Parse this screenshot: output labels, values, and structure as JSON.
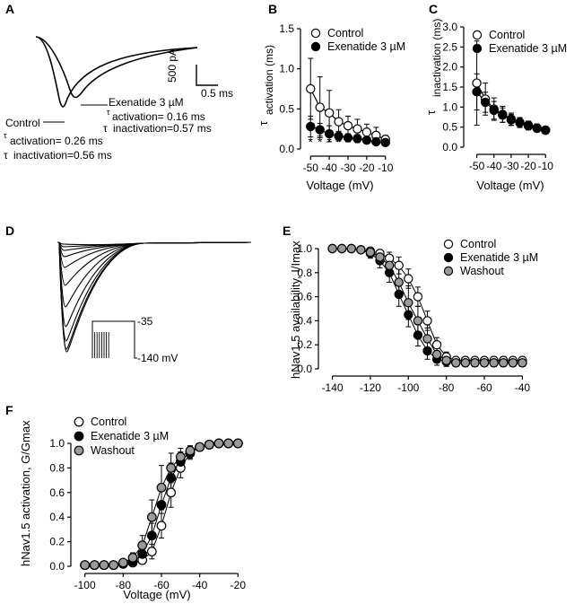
{
  "chart_data": [
    {
      "panel": "A",
      "type": "line",
      "annotations": {
        "exenatide_title": "Exenatide 3 µM",
        "exenatide_tau_act": "activation= 0.16 ms",
        "exenatide_tau_inact": "inactivation=0.57 ms",
        "control_title": "Control",
        "control_tau_act": "activation= 0.26 ms",
        "control_tau_inact": "inactivation=0.56 ms",
        "tau_symbol": "τ",
        "scale_current": "500 pA",
        "scale_time": "0.5 ms"
      }
    },
    {
      "panel": "B",
      "type": "scatter",
      "xlabel": "Voltage (mV)",
      "ylabel": "activation (ms)",
      "ylabel_symbol": "τ",
      "xlim": [
        -53,
        -7
      ],
      "ylim": [
        0,
        1.5
      ],
      "xticks": [
        -50,
        -40,
        -30,
        -20,
        -10
      ],
      "xtick_labels": [
        "-50",
        "-40",
        "-30",
        "-20",
        "-10"
      ],
      "yticks": [
        0,
        0.5,
        1,
        1.5
      ],
      "ytick_labels": [
        "0.0",
        "0.5",
        "1.0",
        "1.5"
      ],
      "legend": [
        "Control",
        "Exenatide 3 µM"
      ],
      "significance_marker": "*",
      "significance_x": [
        -50,
        -45,
        -40,
        -35
      ],
      "series": [
        {
          "name": "Control",
          "marker": "open",
          "x": [
            -50,
            -45,
            -40,
            -35,
            -30,
            -25,
            -20,
            -15,
            -10
          ],
          "y": [
            0.75,
            0.52,
            0.45,
            0.34,
            0.29,
            0.25,
            0.21,
            0.17,
            0.12
          ],
          "err": [
            0.38,
            0.38,
            0.28,
            0.15,
            0.12,
            0.12,
            0.1,
            0.1,
            0.05
          ]
        },
        {
          "name": "Exenatide 3 µM",
          "marker": "filled",
          "x": [
            -50,
            -45,
            -40,
            -35,
            -30,
            -25,
            -20,
            -15,
            -10
          ],
          "y": [
            0.28,
            0.24,
            0.19,
            0.16,
            0.14,
            0.13,
            0.11,
            0.09,
            0.08
          ],
          "err": [
            0.13,
            0.08,
            0.1,
            0.06,
            0.05,
            0.05,
            0.04,
            0.04,
            0.03
          ]
        }
      ]
    },
    {
      "panel": "C",
      "type": "scatter",
      "xlabel": "Voltage (mV)",
      "ylabel": "inactivation (ms)",
      "ylabel_symbol": "τ",
      "xlim": [
        -55,
        -7
      ],
      "ylim": [
        0,
        3.0
      ],
      "xticks": [
        -50,
        -40,
        -30,
        -20,
        -10
      ],
      "xtick_labels": [
        "-50",
        "-40",
        "-30",
        "-20",
        "-10"
      ],
      "yticks": [
        0,
        0.5,
        1,
        1.5,
        2,
        2.5,
        3
      ],
      "ytick_labels": [
        "0.0",
        "0.5",
        "1.0",
        "1.5",
        "2.0",
        "2.5",
        "3.0"
      ],
      "legend": [
        "Control",
        "Exenatide 3 µM"
      ],
      "series": [
        {
          "name": "Control",
          "marker": "open",
          "x": [
            -50,
            -45,
            -40,
            -35,
            -30,
            -25,
            -20,
            -15,
            -10
          ],
          "y": [
            1.6,
            1.2,
            0.95,
            0.82,
            0.7,
            0.62,
            0.55,
            0.48,
            0.43
          ],
          "err": [
            1.05,
            0.4,
            0.28,
            0.2,
            0.15,
            0.12,
            0.1,
            0.1,
            0.08
          ]
        },
        {
          "name": "Exenatide 3 µM",
          "marker": "filled",
          "x": [
            -50,
            -45,
            -40,
            -35,
            -30,
            -25,
            -20,
            -15,
            -10
          ],
          "y": [
            1.38,
            1.12,
            0.92,
            0.8,
            0.68,
            0.61,
            0.53,
            0.47,
            0.42
          ],
          "err": [
            0.45,
            0.25,
            0.22,
            0.18,
            0.14,
            0.12,
            0.1,
            0.08,
            0.08
          ]
        }
      ]
    },
    {
      "panel": "D",
      "type": "line",
      "protocol_labels": [
        "-35",
        "-140 mV"
      ]
    },
    {
      "panel": "E",
      "type": "scatter",
      "ylabel": "hNav1.5 availability, I/Imax",
      "xlim": [
        -145,
        -35
      ],
      "ylim": [
        0,
        1.0
      ],
      "xticks": [
        -140,
        -120,
        -100,
        -80,
        -60,
        -40
      ],
      "xtick_labels": [
        "-140",
        "-120",
        "-100",
        "-80",
        "-60",
        "-40"
      ],
      "yticks": [
        0,
        0.2,
        0.4,
        0.6,
        0.8,
        1.0
      ],
      "ytick_labels": [
        "0.0",
        "0.2",
        "0.4",
        "0.6",
        "0.8",
        "1.0"
      ],
      "legend": [
        "Control",
        "Exenatide 3 µM",
        "Washout"
      ],
      "series": [
        {
          "name": "Control",
          "marker": "open",
          "x": [
            -140,
            -135,
            -130,
            -125,
            -120,
            -115,
            -110,
            -105,
            -100,
            -95,
            -90,
            -85,
            -80,
            -75,
            -70,
            -65,
            -60,
            -55,
            -50,
            -45,
            -40
          ],
          "y": [
            1.0,
            1.0,
            1.0,
            0.99,
            0.98,
            0.96,
            0.92,
            0.86,
            0.75,
            0.6,
            0.4,
            0.2,
            0.1,
            0.07,
            0.07,
            0.07,
            0.07,
            0.07,
            0.07,
            0.07,
            0.07
          ],
          "err": [
            0,
            0,
            0,
            0.01,
            0.02,
            0.03,
            0.05,
            0.07,
            0.08,
            0.08,
            0.08,
            0.06,
            0.04,
            0.03,
            0.03,
            0.03,
            0.03,
            0.03,
            0.03,
            0.03,
            0.03
          ]
        },
        {
          "name": "Exenatide 3 µM",
          "marker": "filled",
          "x": [
            -140,
            -135,
            -130,
            -125,
            -120,
            -115,
            -110,
            -105,
            -100,
            -95,
            -90,
            -85,
            -80,
            -75,
            -70,
            -65,
            -60,
            -55,
            -50,
            -45,
            -40
          ],
          "y": [
            1.0,
            1.0,
            1.0,
            0.99,
            0.96,
            0.9,
            0.8,
            0.62,
            0.45,
            0.28,
            0.15,
            0.08,
            0.06,
            0.05,
            0.05,
            0.05,
            0.05,
            0.05,
            0.05,
            0.05,
            0.05
          ],
          "err": [
            0,
            0,
            0,
            0.02,
            0.04,
            0.06,
            0.08,
            0.1,
            0.1,
            0.09,
            0.07,
            0.05,
            0.04,
            0.03,
            0.03,
            0.03,
            0.03,
            0.03,
            0.03,
            0.03,
            0.03
          ]
        },
        {
          "name": "Washout",
          "marker": "gray",
          "x": [
            -140,
            -135,
            -130,
            -125,
            -120,
            -115,
            -110,
            -105,
            -100,
            -95,
            -90,
            -85,
            -80,
            -75,
            -70,
            -65,
            -60,
            -55,
            -50,
            -45,
            -40
          ],
          "y": [
            1.0,
            1.0,
            1.0,
            0.99,
            0.97,
            0.93,
            0.86,
            0.72,
            0.55,
            0.4,
            0.25,
            0.12,
            0.07,
            0.05,
            0.05,
            0.05,
            0.05,
            0.05,
            0.05,
            0.05,
            0.05
          ],
          "err": [
            0,
            0,
            0,
            0.02,
            0.03,
            0.05,
            0.08,
            0.12,
            0.14,
            0.12,
            0.09,
            0.06,
            0.04,
            0.03,
            0.03,
            0.03,
            0.03,
            0.03,
            0.03,
            0.03,
            0.03
          ]
        }
      ]
    },
    {
      "panel": "F",
      "type": "scatter",
      "xlabel": "Voltage (mV)",
      "ylabel": "hNav1.5 activation, G/Gmax",
      "xlim": [
        -105,
        -15
      ],
      "ylim": [
        0,
        1.0
      ],
      "xticks": [
        -100,
        -80,
        -60,
        -40,
        -20
      ],
      "xtick_labels": [
        "-100",
        "-80",
        "-60",
        "-40",
        "-20"
      ],
      "yticks": [
        0,
        0.2,
        0.4,
        0.6,
        0.8,
        1.0
      ],
      "ytick_labels": [
        "0.0",
        "0.2",
        "0.4",
        "0.6",
        "0.8",
        "1.0"
      ],
      "legend": [
        "Control",
        "Exenatide 3 µM",
        "Washout"
      ],
      "series": [
        {
          "name": "Control",
          "marker": "open",
          "x": [
            -100,
            -95,
            -90,
            -85,
            -80,
            -75,
            -70,
            -65,
            -60,
            -55,
            -50,
            -45,
            -40,
            -35,
            -30,
            -25,
            -20
          ],
          "y": [
            0.01,
            0.01,
            0.01,
            0.01,
            0.02,
            0.03,
            0.05,
            0.12,
            0.33,
            0.6,
            0.8,
            0.92,
            0.97,
            0.99,
            1.0,
            1.0,
            1.0
          ],
          "err": [
            0,
            0,
            0,
            0,
            0.01,
            0.02,
            0.03,
            0.06,
            0.1,
            0.12,
            0.08,
            0.05,
            0.03,
            0.02,
            0.01,
            0.01,
            0.01
          ]
        },
        {
          "name": "Exenatide 3 µM",
          "marker": "filled",
          "x": [
            -100,
            -95,
            -90,
            -85,
            -80,
            -75,
            -70,
            -65,
            -60,
            -55,
            -50,
            -45,
            -40,
            -35,
            -30,
            -25,
            -20
          ],
          "y": [
            0.01,
            0.01,
            0.01,
            0.01,
            0.02,
            0.04,
            0.1,
            0.25,
            0.5,
            0.72,
            0.85,
            0.93,
            0.97,
            0.99,
            1.0,
            1.0,
            1.0
          ],
          "err": [
            0,
            0,
            0,
            0,
            0.01,
            0.03,
            0.06,
            0.1,
            0.15,
            0.12,
            0.08,
            0.05,
            0.03,
            0.02,
            0.01,
            0.01,
            0.01
          ]
        },
        {
          "name": "Washout",
          "marker": "gray",
          "x": [
            -100,
            -95,
            -90,
            -85,
            -80,
            -75,
            -70,
            -65,
            -60,
            -55,
            -50,
            -45,
            -40,
            -35,
            -30,
            -25,
            -20
          ],
          "y": [
            0.01,
            0.01,
            0.01,
            0.01,
            0.03,
            0.07,
            0.17,
            0.4,
            0.64,
            0.8,
            0.89,
            0.94,
            0.97,
            0.99,
            1.0,
            1.0,
            1.0
          ],
          "err": [
            0,
            0,
            0,
            0,
            0.02,
            0.04,
            0.08,
            0.14,
            0.18,
            0.12,
            0.07,
            0.04,
            0.03,
            0.02,
            0.01,
            0.01,
            0.01
          ]
        }
      ]
    }
  ],
  "panels": {
    "a": "A",
    "b": "B",
    "c": "C",
    "d": "D",
    "e": "E",
    "f": "F"
  }
}
